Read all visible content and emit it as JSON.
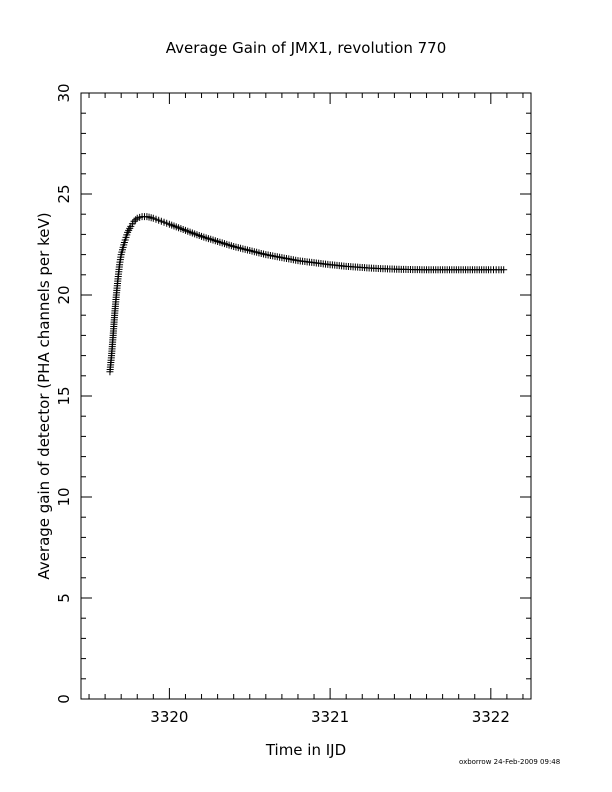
{
  "chart_data": {
    "type": "scatter",
    "title": "Average Gain of JMX1, revolution 770",
    "xlabel": "Time in IJD",
    "ylabel": "Average gain of detector (PHA channels per keV)",
    "xlim": [
      3319.45,
      3322.25
    ],
    "ylim": [
      0,
      30
    ],
    "x_ticks": [
      3320,
      3321,
      3322
    ],
    "y_ticks": [
      0,
      5,
      10,
      15,
      20,
      25,
      30
    ],
    "marker": "+",
    "grid": false,
    "series": [
      {
        "points": [
          [
            3319.63,
            16.2
          ],
          [
            3319.64,
            17.0
          ],
          [
            3319.65,
            18.0
          ],
          [
            3319.66,
            19.1
          ],
          [
            3319.67,
            20.0
          ],
          [
            3319.68,
            20.8
          ],
          [
            3319.69,
            21.5
          ],
          [
            3319.7,
            22.0
          ],
          [
            3319.72,
            22.6
          ],
          [
            3319.74,
            23.1
          ],
          [
            3319.76,
            23.4
          ],
          [
            3319.78,
            23.65
          ],
          [
            3319.8,
            23.8
          ],
          [
            3319.83,
            23.88
          ],
          [
            3319.86,
            23.88
          ],
          [
            3319.9,
            23.8
          ],
          [
            3319.95,
            23.65
          ],
          [
            3320.0,
            23.5
          ],
          [
            3320.1,
            23.2
          ],
          [
            3320.2,
            22.9
          ],
          [
            3320.3,
            22.65
          ],
          [
            3320.4,
            22.4
          ],
          [
            3320.5,
            22.2
          ],
          [
            3320.6,
            22.0
          ],
          [
            3320.7,
            21.85
          ],
          [
            3320.8,
            21.7
          ],
          [
            3320.9,
            21.6
          ],
          [
            3321.0,
            21.5
          ],
          [
            3321.1,
            21.42
          ],
          [
            3321.2,
            21.36
          ],
          [
            3321.3,
            21.31
          ],
          [
            3321.4,
            21.28
          ],
          [
            3321.5,
            21.26
          ],
          [
            3321.6,
            21.25
          ],
          [
            3321.7,
            21.25
          ],
          [
            3321.8,
            21.25
          ],
          [
            3321.9,
            21.25
          ],
          [
            3322.0,
            21.25
          ],
          [
            3322.05,
            21.25
          ],
          [
            3322.08,
            21.25
          ]
        ]
      }
    ]
  },
  "footer_text": "oxborrow 24-Feb-2009 09:48"
}
